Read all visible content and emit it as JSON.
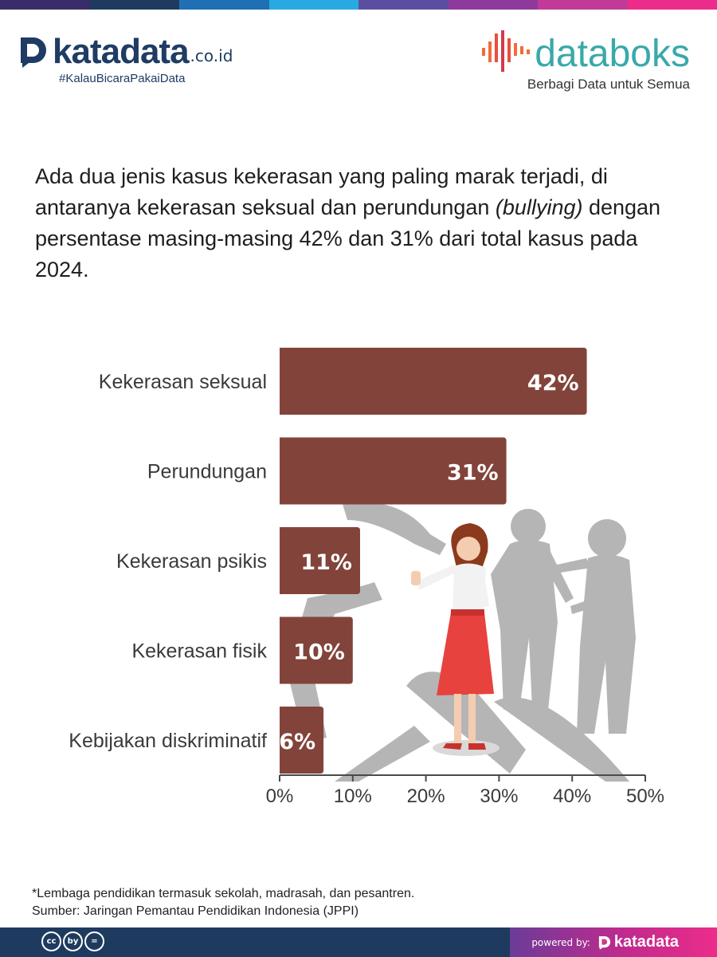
{
  "top_bar_colors": [
    "#3a2c68",
    "#1e3b5f",
    "#1f6fb5",
    "#27aae1",
    "#5b4ea0",
    "#8e3a9d",
    "#c13a97",
    "#ec2c8a"
  ],
  "brand": {
    "katadata_name": "katadata",
    "katadata_tld": ".co.id",
    "katadata_tagline": "#KalauBicaraPakaiData",
    "databoks_name": "databoks",
    "databoks_tagline": "Berbagi Data untuk Semua",
    "katadata_color": "#1e3c64",
    "databoks_color": "#39a9a8",
    "accent_orange": "#f26b3a"
  },
  "headline": {
    "part1": "Ada dua jenis kasus kekerasan yang paling marak terjadi, di antaranya kekerasan seksual dan perundungan ",
    "italic": "(bullying)",
    "part2": " dengan persentase masing-masing 42% dan 31% dari total kasus pada 2024."
  },
  "chart_data": {
    "type": "bar",
    "orientation": "horizontal",
    "categories": [
      "Kekerasan seksual",
      "Perundungan",
      "Kekerasan psikis",
      "Kekerasan fisik",
      "Kebijakan diskriminatif"
    ],
    "values": [
      42,
      31,
      11,
      10,
      6
    ],
    "value_labels": [
      "42%",
      "31%",
      "11%",
      "10%",
      "6%"
    ],
    "xlim": [
      0,
      50
    ],
    "xticks": [
      0,
      10,
      20,
      30,
      40,
      50
    ],
    "xtick_labels": [
      "0%",
      "10%",
      "20%",
      "30%",
      "40%",
      "50%"
    ],
    "bar_color": "#82443a",
    "grid": false,
    "legend": "none"
  },
  "footnote": {
    "note": "*Lembaga pendidikan termasuk sekolah, madrasah, dan pesantren.",
    "source": "Sumber: Jaringan Pemantau Pendidikan Indonesia (JPPI)"
  },
  "footer": {
    "cc_icons": [
      "cc",
      "by",
      "="
    ],
    "powered_label": "powered by:",
    "powered_brand": "katadata",
    "bg_color": "#1e3b5f"
  }
}
